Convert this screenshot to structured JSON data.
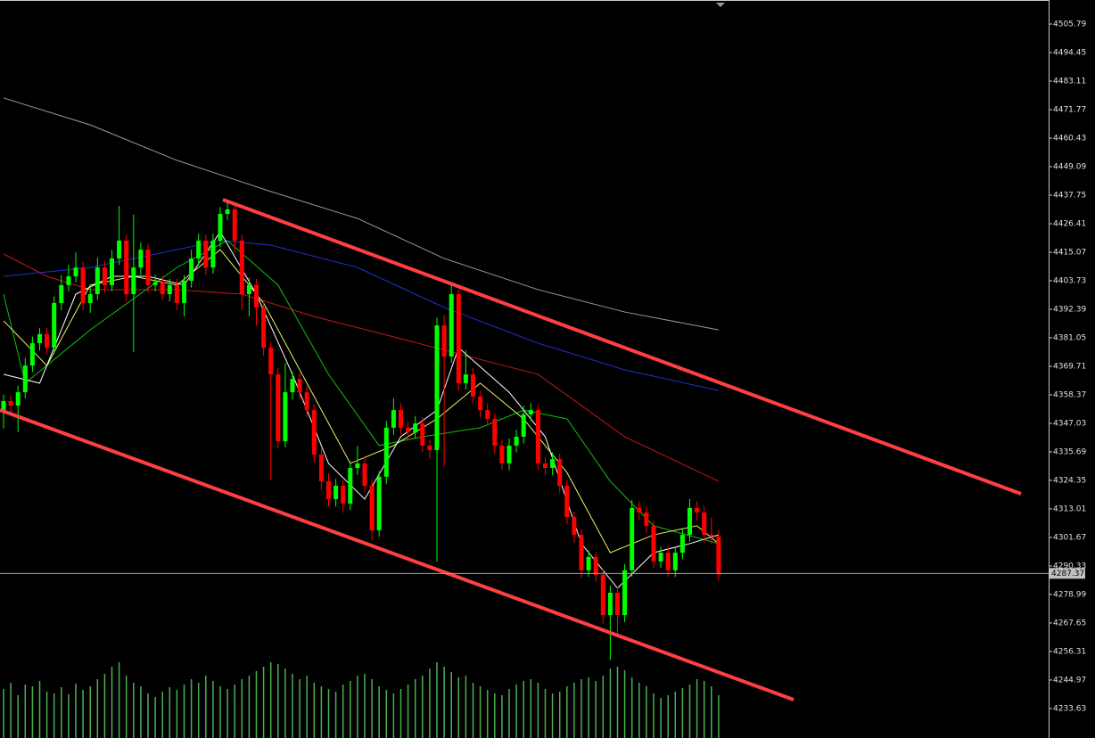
{
  "chart_data": {
    "type": "candlestick",
    "open": [
      4352.0,
      4355.9,
      4354.1,
      4359.4,
      4370.0,
      4378.9,
      4382.5,
      4377.1,
      4394.9,
      4402.0,
      4405.5,
      4409.0,
      4394.9,
      4398.4,
      4409.0,
      4402.0,
      4412.6,
      4419.7,
      4398.4,
      4409.0,
      4416.1,
      4402.0,
      4403.2,
      4398.4,
      4402.0,
      4394.9,
      4403.7,
      4412.6,
      4419.7,
      4409.0,
      4419.7,
      4430.3,
      4432.1,
      4419.7,
      4398.4,
      4402.0,
      4393.1,
      4377.1,
      4366.5,
      4339.9,
      4359.4,
      4364.7,
      4359.4,
      4352.3,
      4334.6,
      4324.0,
      4316.9,
      4322.2,
      4315.1,
      4329.3,
      4331.1,
      4322.2,
      4304.5,
      4325.8,
      4345.3,
      4352.3,
      4345.3,
      4343.5,
      4347.0,
      4338.2,
      4336.4,
      4386.0,
      4373.6,
      4398.4,
      4363.0,
      4366.5,
      4357.7,
      4352.3,
      4348.8,
      4338.2,
      4331.1,
      4338.2,
      4341.7,
      4350.6,
      4352.3,
      4331.1,
      4329.3,
      4332.8,
      4322.2,
      4309.8,
      4302.7,
      4288.6,
      4293.9,
      4286.8,
      4270.8,
      4279.7,
      4270.8,
      4288.6,
      4313.4,
      4311.6,
      4306.3,
      4292.1,
      4295.6,
      4288.6,
      4295.6,
      4302.7,
      4313.4,
      4311.6,
      4302.7,
      4302.1
    ],
    "high": [
      4358.4,
      4358.0,
      4362.0,
      4373.0,
      4381.5,
      4385.0,
      4385.0,
      4397.5,
      4406.0,
      4410.0,
      4415.0,
      4411.5,
      4402.0,
      4413.0,
      4411.5,
      4416.0,
      4433.5,
      4422.0,
      4430.0,
      4419.0,
      4418.5,
      4406.0,
      4405.5,
      4404.5,
      4404.5,
      4406.0,
      4416.0,
      4422.5,
      4422.0,
      4422.5,
      4433.0,
      4435.5,
      4434.5,
      4422.0,
      4405.0,
      4404.5,
      4395.5,
      4379.5,
      4369.0,
      4371.0,
      4367.5,
      4367.0,
      4362.0,
      4354.5,
      4337.0,
      4327.0,
      4325.0,
      4324.5,
      4332.0,
      4338.0,
      4333.5,
      4324.5,
      4328.0,
      4348.0,
      4357.0,
      4355.0,
      4347.5,
      4350.0,
      4349.5,
      4340.5,
      4389.0,
      4390.0,
      4402.0,
      4400.5,
      4376.0,
      4369.0,
      4360.0,
      4355.0,
      4351.0,
      4340.5,
      4341.0,
      4344.5,
      4354.0,
      4355.0,
      4354.5,
      4333.5,
      4335.5,
      4335.0,
      4324.5,
      4312.0,
      4305.0,
      4296.5,
      4296.0,
      4289.0,
      4282.5,
      4282.0,
      4291.0,
      4316.5,
      4316.0,
      4314.0,
      4308.5,
      4298.0,
      4298.0,
      4298.0,
      4305.0,
      4317.0,
      4316.0,
      4314.0,
      4309.5,
      4304.5
    ],
    "low": [
      4345.0,
      4351.5,
      4343.5,
      4357.0,
      4367.5,
      4376.0,
      4374.5,
      4374.5,
      4392.0,
      4399.5,
      4403.0,
      4392.0,
      4391.0,
      4396.0,
      4399.0,
      4399.5,
      4410.0,
      4395.5,
      4375.4,
      4406.0,
      4399.0,
      4399.5,
      4396.0,
      4395.5,
      4392.0,
      4389.5,
      4401.0,
      4410.0,
      4406.0,
      4406.5,
      4417.0,
      4428.0,
      4415.0,
      4392.0,
      4389.5,
      4386.0,
      4374.0,
      4324.5,
      4337.0,
      4337.5,
      4356.5,
      4356.5,
      4349.5,
      4331.5,
      4320.5,
      4314.0,
      4314.0,
      4311.5,
      4312.5,
      4326.5,
      4319.5,
      4300.5,
      4302.0,
      4323.0,
      4342.5,
      4342.5,
      4340.5,
      4341.0,
      4335.5,
      4333.0,
      4292.0,
      4330.0,
      4371.0,
      4360.0,
      4360.5,
      4355.0,
      4349.5,
      4346.0,
      4335.0,
      4328.5,
      4328.5,
      4335.5,
      4339.0,
      4348.0,
      4328.5,
      4326.5,
      4326.5,
      4319.5,
      4307.0,
      4299.5,
      4285.5,
      4286.0,
      4284.0,
      4267.5,
      4253.0,
      4262.0,
      4268.0,
      4286.0,
      4308.5,
      4303.5,
      4289.5,
      4289.5,
      4286.0,
      4286.0,
      4293.0,
      4300.0,
      4308.5,
      4299.5,
      4299.0,
      4284.5
    ],
    "close": [
      4355.9,
      4354.1,
      4359.4,
      4370.0,
      4378.9,
      4382.5,
      4377.1,
      4394.9,
      4402.0,
      4405.5,
      4409.0,
      4394.9,
      4398.4,
      4409.0,
      4402.0,
      4412.6,
      4419.7,
      4398.4,
      4409.0,
      4416.1,
      4402.0,
      4403.2,
      4398.4,
      4402.0,
      4394.9,
      4403.7,
      4412.6,
      4419.7,
      4409.0,
      4419.7,
      4430.3,
      4432.1,
      4419.7,
      4398.4,
      4402.0,
      4393.1,
      4377.1,
      4366.5,
      4339.9,
      4359.4,
      4364.7,
      4359.4,
      4352.3,
      4334.6,
      4324.0,
      4316.9,
      4322.2,
      4315.1,
      4329.3,
      4331.1,
      4322.2,
      4304.5,
      4325.8,
      4345.3,
      4352.3,
      4345.3,
      4343.5,
      4347.0,
      4338.2,
      4336.4,
      4386.0,
      4373.6,
      4398.4,
      4363.0,
      4366.5,
      4357.7,
      4352.3,
      4348.8,
      4338.2,
      4331.1,
      4338.2,
      4341.7,
      4350.6,
      4352.3,
      4331.1,
      4329.3,
      4332.8,
      4322.2,
      4309.8,
      4302.7,
      4288.6,
      4293.9,
      4286.8,
      4270.8,
      4279.7,
      4270.8,
      4288.6,
      4313.4,
      4311.6,
      4306.3,
      4292.1,
      4295.6,
      4288.6,
      4295.6,
      4302.7,
      4313.4,
      4311.6,
      4302.7,
      4302.1,
      4287.37
    ],
    "up_color": "#00ff00",
    "down_color": "#ff0000",
    "last_price": 4287.37,
    "ylim": [
      4221.92,
      4515.36
    ],
    "yticks": [
      4505.79,
      4494.45,
      4483.11,
      4471.77,
      4460.43,
      4449.09,
      4437.75,
      4426.41,
      4415.07,
      4403.73,
      4392.39,
      4381.05,
      4369.71,
      4358.37,
      4347.03,
      4335.69,
      4324.35,
      4313.01,
      4301.67,
      4290.33,
      4278.99,
      4267.65,
      4256.31,
      4244.97,
      4233.63
    ],
    "moving_averages": [
      {
        "color": "#9a9a9a",
        "x": [
          0,
          12,
          24,
          37,
          49,
          61,
          74,
          86,
          99
        ],
        "values": [
          4476.4,
          4465.7,
          4451.6,
          4439.2,
          4428.5,
          4412.6,
          4400.2,
          4391.3,
          4384.2
        ]
      },
      {
        "color": "#2030d0",
        "x": [
          0,
          12,
          24,
          30,
          37,
          49,
          61,
          74,
          86,
          99
        ],
        "values": [
          4405.5,
          4409.0,
          4416.1,
          4419.7,
          4417.9,
          4409.0,
          4393.1,
          4378.9,
          4368.3,
          4360.1
        ]
      },
      {
        "color": "#c01818",
        "x": [
          0,
          6,
          12,
          24,
          33,
          43,
          55,
          62,
          74,
          86,
          99
        ],
        "values": [
          4414.4,
          4405.5,
          4400.2,
          4400.2,
          4398.4,
          4389.5,
          4380.7,
          4375.4,
          4366.5,
          4341.7,
          4324.0
        ]
      },
      {
        "color": "#10c010",
        "x": [
          0,
          3,
          12,
          24,
          31,
          38,
          45,
          52,
          58,
          66,
          72,
          78,
          84,
          90,
          99
        ],
        "values": [
          4398.4,
          4363.0,
          4384.2,
          4409.0,
          4419.7,
          4402.0,
          4366.5,
          4338.2,
          4341.7,
          4345.3,
          4352.3,
          4348.8,
          4324.0,
          4306.3,
          4299.2
        ]
      },
      {
        "color": "#f0f060",
        "x": [
          0,
          6,
          12,
          18,
          24,
          30,
          36,
          42,
          48,
          54,
          60,
          66,
          72,
          78,
          84,
          90,
          96,
          99
        ],
        "values": [
          4387.8,
          4370.0,
          4402.0,
          4405.5,
          4402.0,
          4416.1,
          4394.9,
          4363.0,
          4331.1,
          4338.2,
          4348.8,
          4363.0,
          4348.8,
          4327.5,
          4295.6,
          4302.7,
          4306.3,
          4299.2
        ]
      },
      {
        "color": "#ffffff",
        "x": [
          0,
          5,
          10,
          15,
          20,
          25,
          30,
          35,
          40,
          45,
          50,
          55,
          60,
          63,
          70,
          75,
          80,
          85,
          90,
          95,
          99
        ],
        "values": [
          4366.5,
          4363.0,
          4398.4,
          4405.5,
          4405.5,
          4402.0,
          4423.2,
          4398.4,
          4366.5,
          4331.1,
          4316.9,
          4341.7,
          4352.3,
          4377.1,
          4359.4,
          4341.7,
          4299.2,
          4281.5,
          4295.6,
          4299.2,
          4302.7
        ]
      }
    ],
    "volume": {
      "color": "#4caf50",
      "ylim": [
        0,
        100
      ],
      "values": [
        55,
        62,
        48,
        60,
        58,
        64,
        52,
        50,
        57,
        49,
        61,
        54,
        58,
        66,
        72,
        80,
        85,
        70,
        62,
        58,
        50,
        46,
        52,
        57,
        54,
        60,
        66,
        62,
        70,
        64,
        58,
        55,
        60,
        66,
        70,
        75,
        80,
        85,
        83,
        78,
        72,
        66,
        70,
        62,
        58,
        55,
        52,
        60,
        64,
        70,
        72,
        66,
        58,
        54,
        50,
        55,
        60,
        66,
        70,
        78,
        85,
        80,
        74,
        68,
        70,
        62,
        58,
        54,
        50,
        48,
        55,
        60,
        64,
        66,
        62,
        55,
        50,
        52,
        58,
        62,
        66,
        68,
        64,
        70,
        78,
        80,
        76,
        68,
        62,
        58,
        50,
        45,
        48,
        52,
        56,
        60,
        66,
        64,
        58,
        48
      ]
    }
  }
}
